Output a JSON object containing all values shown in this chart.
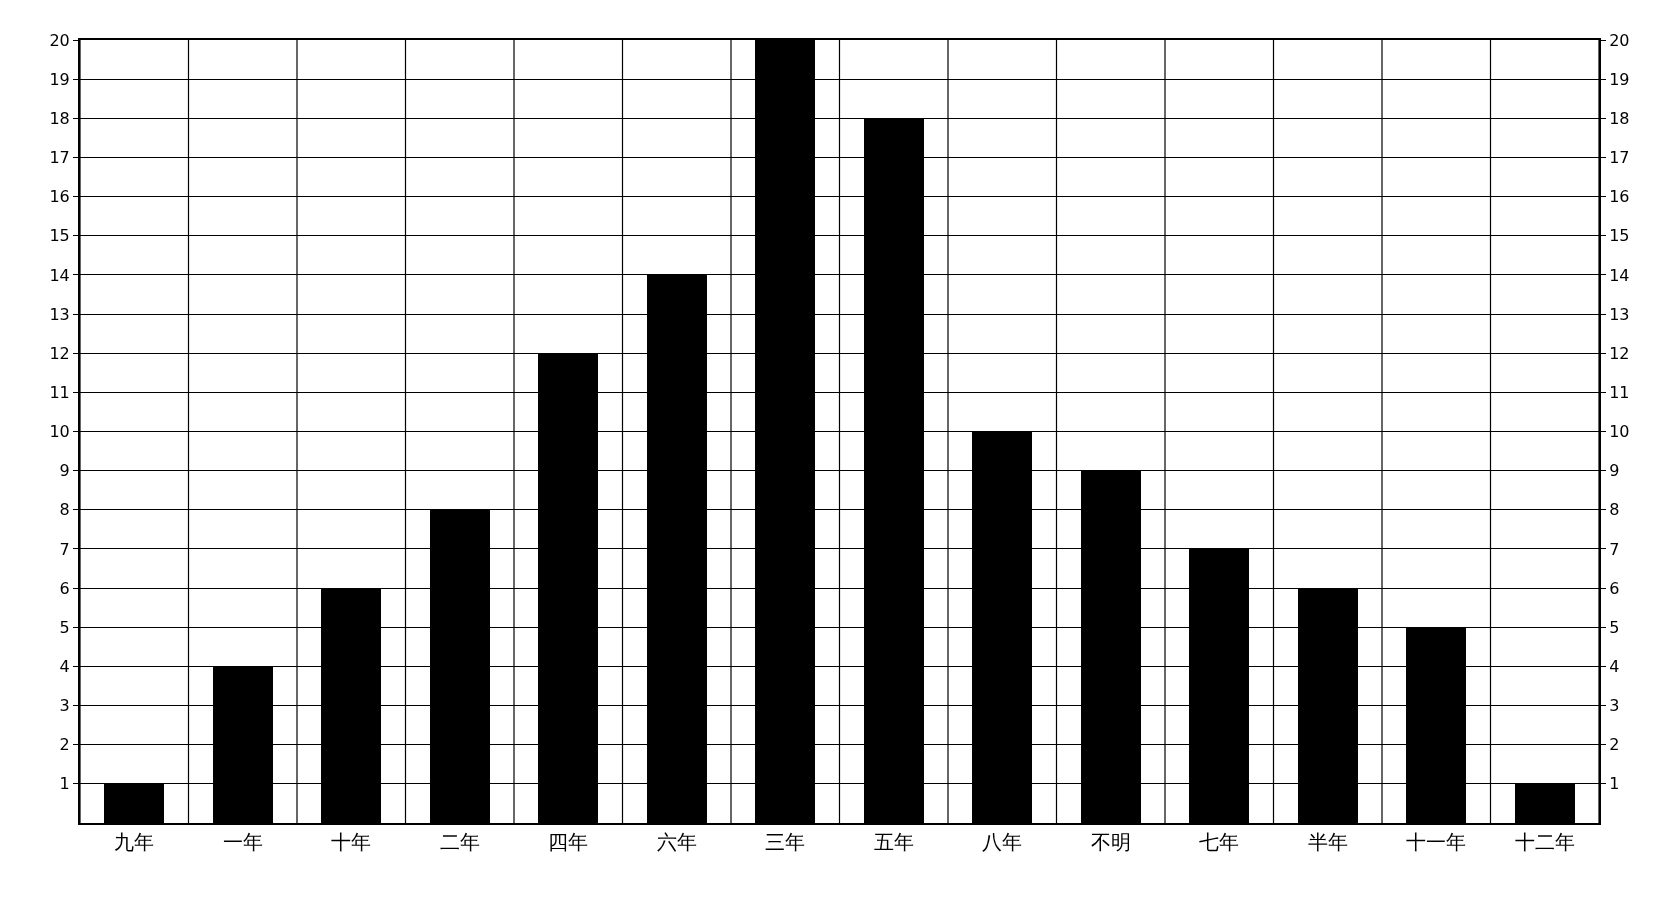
{
  "chart_data": {
    "type": "bar",
    "categories": [
      "九年",
      "一年",
      "十年",
      "二年",
      "四年",
      "六年",
      "三年",
      "五年",
      "八年",
      "不明",
      "七年",
      "半年",
      "十一年",
      "十二年"
    ],
    "values": [
      1,
      4,
      6,
      8,
      12,
      14,
      20,
      18,
      10,
      9,
      7,
      6,
      5,
      1
    ],
    "color": "#000000",
    "ylim": [
      0,
      20
    ],
    "yticks": [
      1,
      2,
      3,
      4,
      5,
      6,
      7,
      8,
      9,
      10,
      11,
      12,
      13,
      14,
      15,
      16,
      17,
      18,
      19,
      20
    ],
    "y2lim": [
      0,
      20
    ],
    "y2ticks": [
      1,
      2,
      3,
      4,
      5,
      6,
      7,
      8,
      9,
      10,
      11,
      12,
      13,
      14,
      15,
      16,
      17,
      18,
      19,
      20
    ],
    "grid": true
  }
}
